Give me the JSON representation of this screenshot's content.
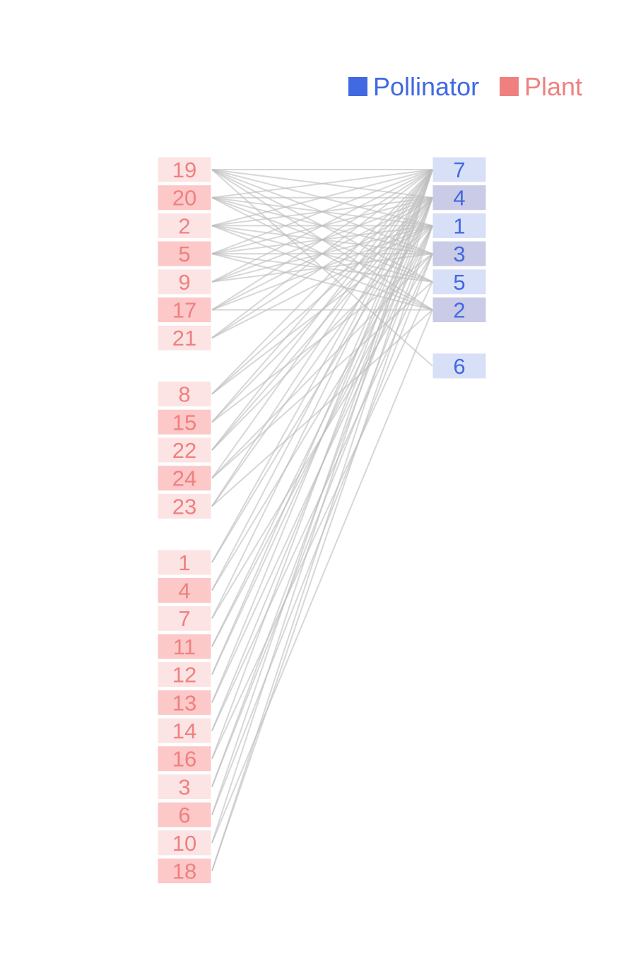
{
  "legend": {
    "pollinator_label": "Pollinator",
    "plant_label": "Plant"
  },
  "colors": {
    "pollinator": "#4169e1",
    "plant": "#f08080",
    "pollinator_box_light": "#d8e0f8",
    "pollinator_box_dark": "#cacbe6",
    "plant_box_light": "#fce4e4",
    "plant_box_dark": "#fcc8c8",
    "edge": "#bdbdbd"
  },
  "plants": {
    "groups": [
      [
        "19",
        "20",
        "2",
        "5",
        "9",
        "17",
        "21"
      ],
      [
        "8",
        "15",
        "22",
        "24",
        "23"
      ],
      [
        "1",
        "4",
        "7",
        "11",
        "12",
        "13",
        "14",
        "16",
        "3",
        "6",
        "10",
        "18"
      ]
    ]
  },
  "pollinators": {
    "groups": [
      [
        "7",
        "4",
        "1",
        "3",
        "5",
        "2"
      ],
      [
        "6"
      ]
    ]
  },
  "edges": [
    [
      "19",
      "7"
    ],
    [
      "19",
      "4"
    ],
    [
      "19",
      "1"
    ],
    [
      "19",
      "3"
    ],
    [
      "19",
      "5"
    ],
    [
      "19",
      "2"
    ],
    [
      "19",
      "6"
    ],
    [
      "20",
      "7"
    ],
    [
      "20",
      "4"
    ],
    [
      "20",
      "1"
    ],
    [
      "20",
      "3"
    ],
    [
      "20",
      "5"
    ],
    [
      "20",
      "2"
    ],
    [
      "2",
      "7"
    ],
    [
      "2",
      "4"
    ],
    [
      "2",
      "1"
    ],
    [
      "2",
      "3"
    ],
    [
      "2",
      "5"
    ],
    [
      "2",
      "2"
    ],
    [
      "5",
      "7"
    ],
    [
      "5",
      "4"
    ],
    [
      "5",
      "1"
    ],
    [
      "5",
      "3"
    ],
    [
      "5",
      "5"
    ],
    [
      "5",
      "2"
    ],
    [
      "9",
      "7"
    ],
    [
      "9",
      "4"
    ],
    [
      "9",
      "1"
    ],
    [
      "9",
      "3"
    ],
    [
      "17",
      "7"
    ],
    [
      "17",
      "4"
    ],
    [
      "17",
      "1"
    ],
    [
      "17",
      "2"
    ],
    [
      "21",
      "7"
    ],
    [
      "21",
      "4"
    ],
    [
      "21",
      "1"
    ],
    [
      "8",
      "7"
    ],
    [
      "8",
      "4"
    ],
    [
      "8",
      "1"
    ],
    [
      "15",
      "7"
    ],
    [
      "15",
      "4"
    ],
    [
      "15",
      "3"
    ],
    [
      "22",
      "7"
    ],
    [
      "22",
      "4"
    ],
    [
      "22",
      "1"
    ],
    [
      "24",
      "7"
    ],
    [
      "24",
      "3"
    ],
    [
      "24",
      "5"
    ],
    [
      "23",
      "7"
    ],
    [
      "23",
      "4"
    ],
    [
      "23",
      "2"
    ],
    [
      "1",
      "7"
    ],
    [
      "1",
      "4"
    ],
    [
      "4",
      "7"
    ],
    [
      "4",
      "1"
    ],
    [
      "7",
      "7"
    ],
    [
      "7",
      "3"
    ],
    [
      "11",
      "4"
    ],
    [
      "11",
      "1"
    ],
    [
      "12",
      "7"
    ],
    [
      "12",
      "4"
    ],
    [
      "13",
      "7"
    ],
    [
      "13",
      "1"
    ],
    [
      "14",
      "4"
    ],
    [
      "14",
      "3"
    ],
    [
      "16",
      "7"
    ],
    [
      "16",
      "5"
    ],
    [
      "3",
      "4"
    ],
    [
      "3",
      "1"
    ],
    [
      "6",
      "7"
    ],
    [
      "6",
      "3"
    ],
    [
      "10",
      "7"
    ],
    [
      "10",
      "2"
    ],
    [
      "18",
      "4"
    ],
    [
      "18",
      "1"
    ]
  ]
}
